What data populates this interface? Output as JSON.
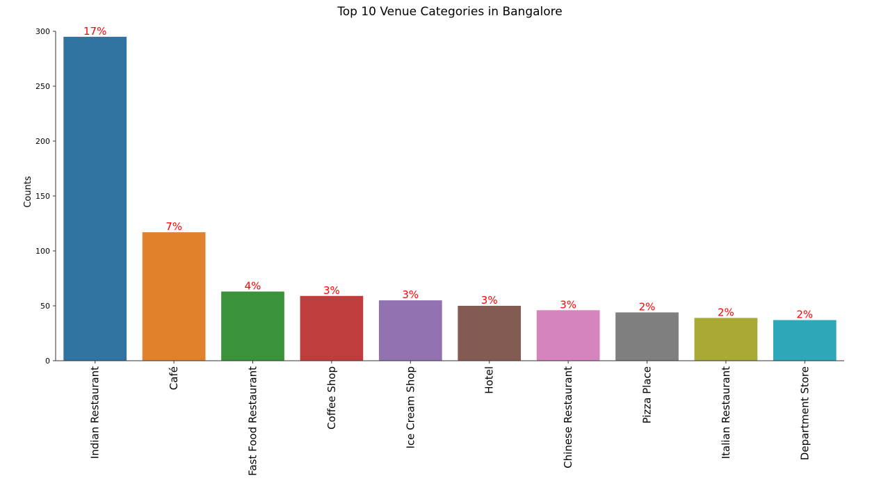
{
  "chart_data": {
    "type": "bar",
    "title": "Top 10 Venue Categories in Bangalore",
    "xlabel": "",
    "ylabel": "Counts",
    "categories": [
      "Indian Restaurant",
      "Café",
      "Fast Food Restaurant",
      "Coffee Shop",
      "Ice Cream Shop",
      "Hotel",
      "Chinese Restaurant",
      "Pizza Place",
      "Italian Restaurant",
      "Department Store"
    ],
    "values": [
      295,
      117,
      63,
      59,
      55,
      50,
      46,
      44,
      39,
      37
    ],
    "data_labels": [
      "17%",
      "7%",
      "4%",
      "3%",
      "3%",
      "3%",
      "3%",
      "2%",
      "2%",
      "2%"
    ],
    "colors": [
      "#3274a1",
      "#e1812c",
      "#3a923a",
      "#c03d3e",
      "#9372b2",
      "#845b53",
      "#d684bd",
      "#7f7f7f",
      "#a9aa35",
      "#2ea8b8"
    ],
    "data_label_color": "#ff0000",
    "ylim": [
      0,
      300
    ],
    "yticks": [
      0,
      50,
      100,
      150,
      200,
      250,
      300
    ],
    "grid": false,
    "legend": "none"
  }
}
